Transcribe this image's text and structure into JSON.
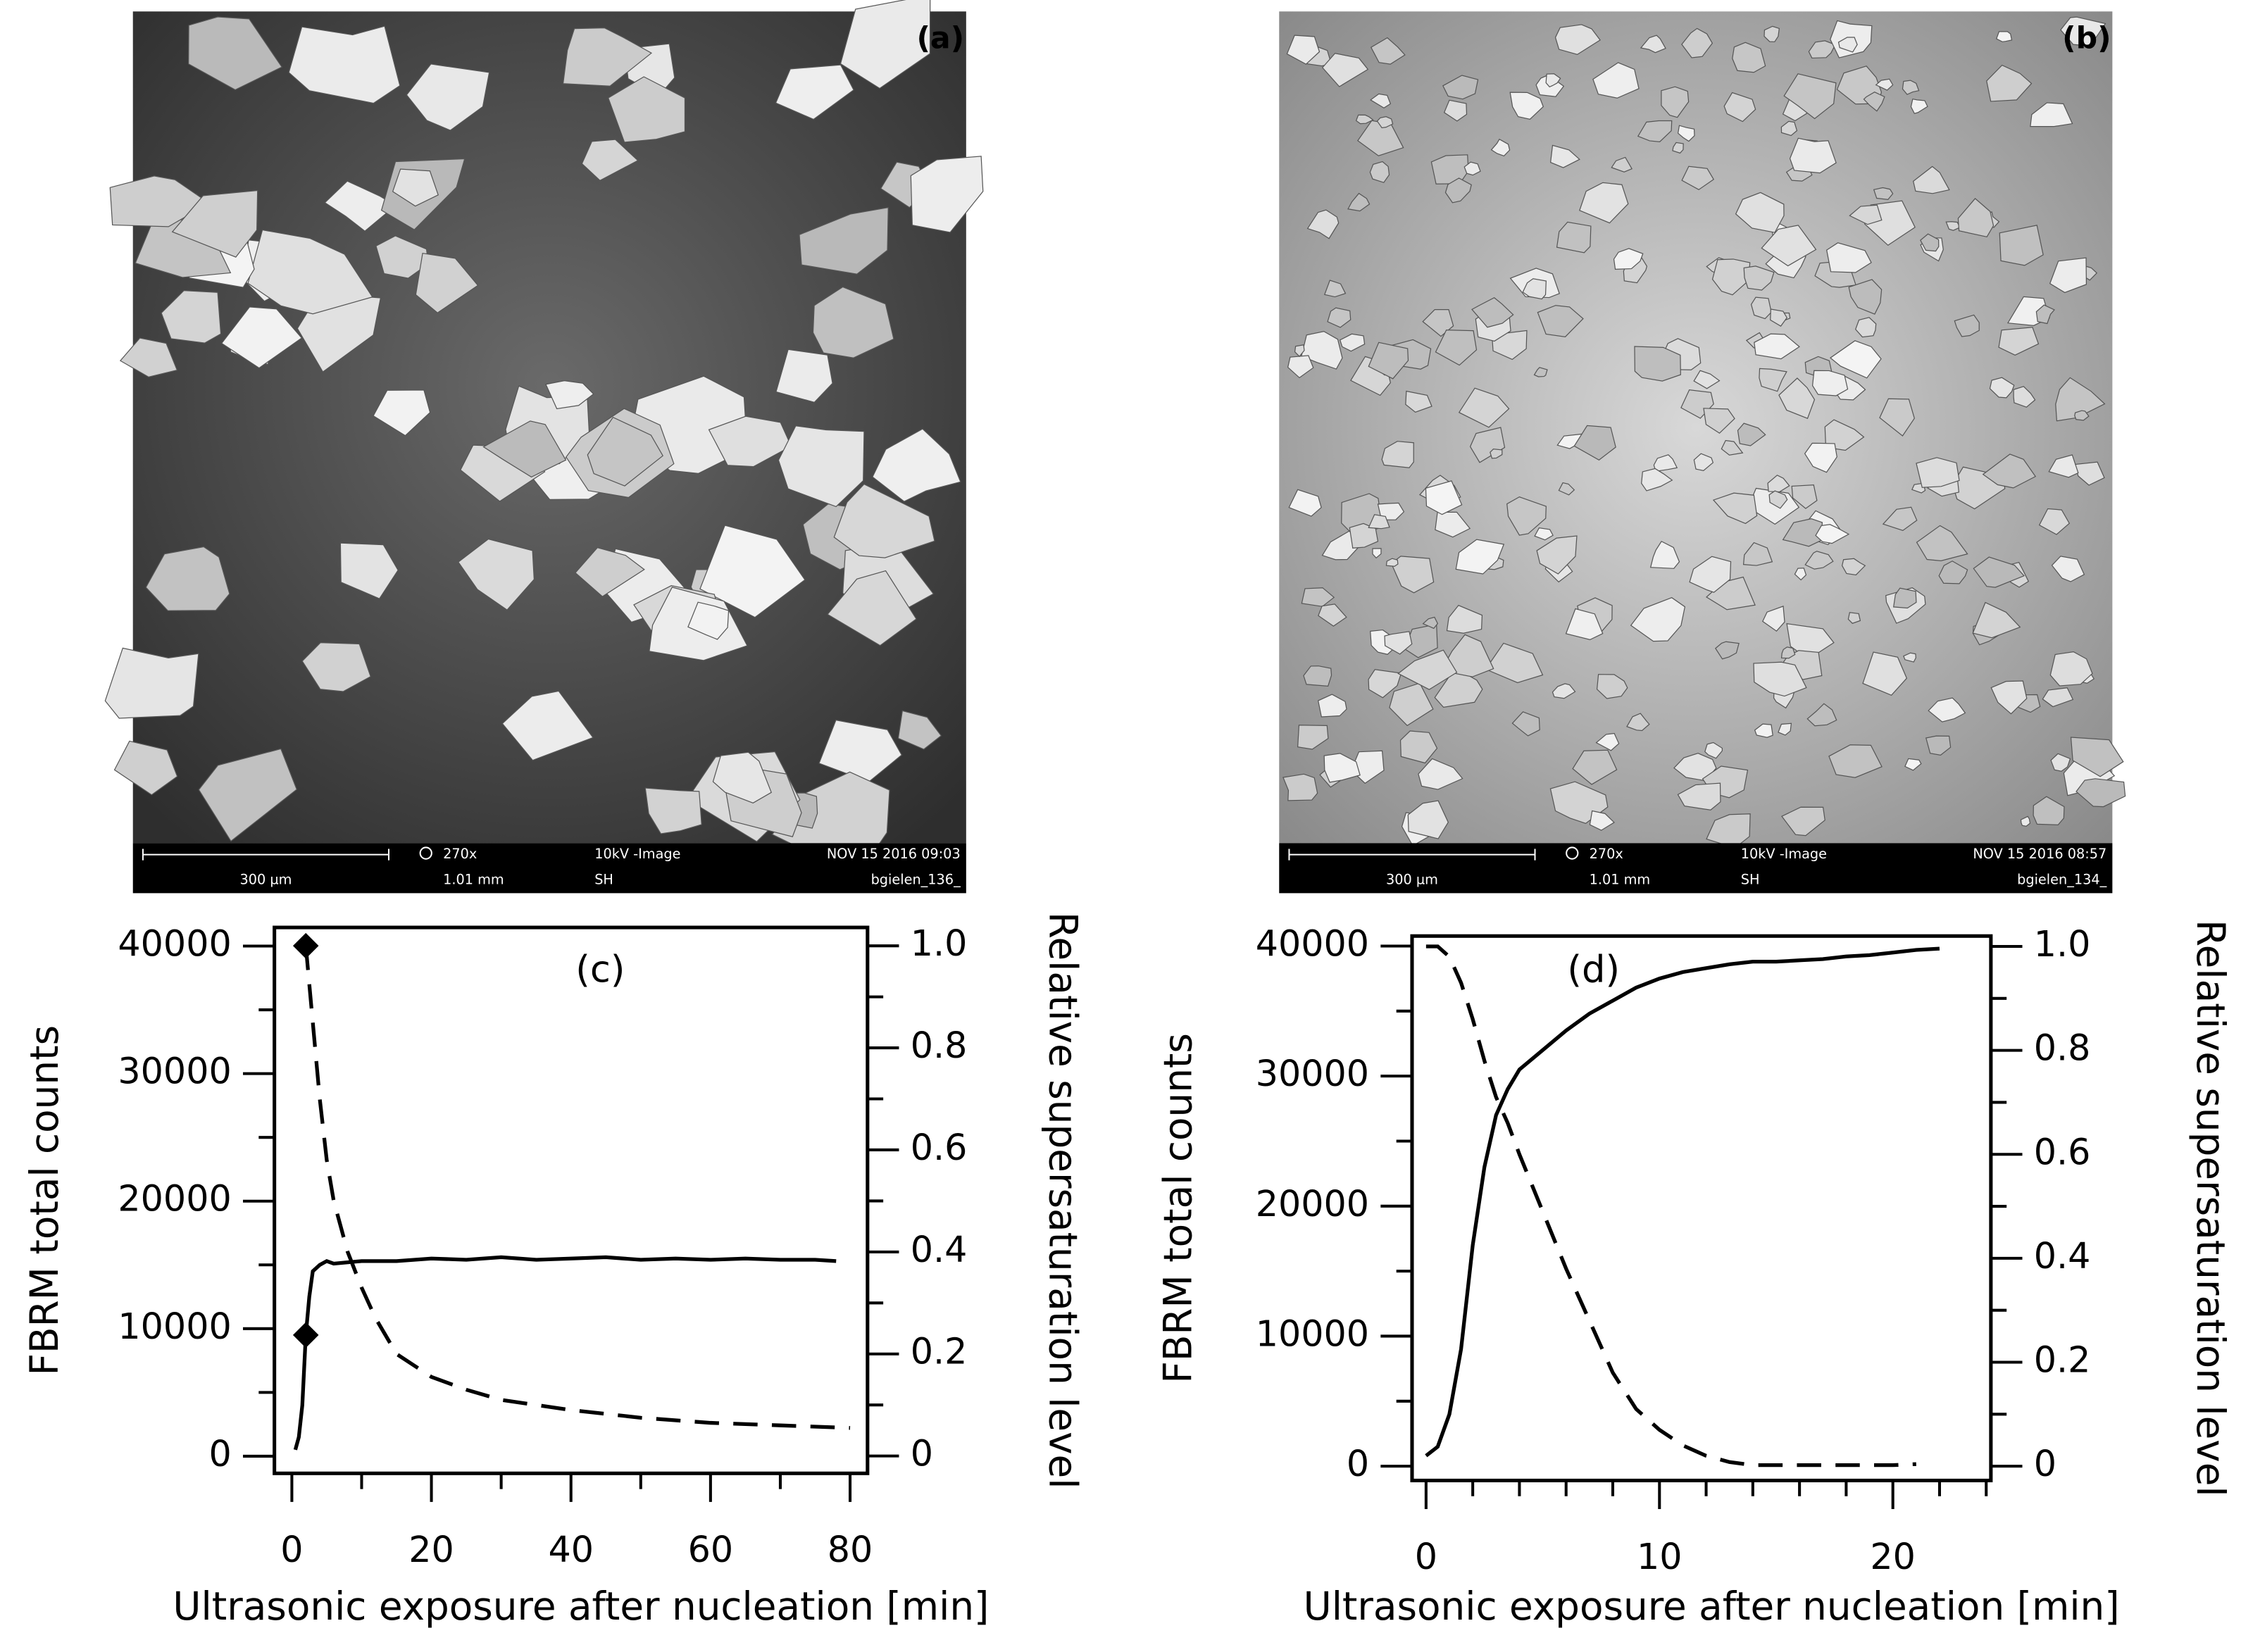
{
  "images": [
    {
      "label": "(a)",
      "scale_bar": "300 µm",
      "magnification": "270x",
      "field": "1.01 mm",
      "mode": "10kV -Image",
      "operator": "SH",
      "date": "NOV 15 2016 09:03",
      "file": "bgielen_136_",
      "tone": "dark"
    },
    {
      "label": "(b)",
      "scale_bar": "300 µm",
      "magnification": "270x",
      "field": "1.01 mm",
      "mode": "10kV -Image",
      "operator": "SH",
      "date": "NOV 15 2016 08:57",
      "file": "bgielen_134_",
      "tone": "light"
    }
  ],
  "chart_data": [
    {
      "type": "line",
      "annotation": "(c)",
      "x_label": "Ultrasonic exposure after nucleation [min]",
      "y_label": "FBRM total counts",
      "y2_label": "Relative supersaturation level",
      "xlim": [
        -2.5,
        82.5
      ],
      "xticks": [
        0,
        20,
        40,
        60,
        80
      ],
      "xminor": [
        10,
        30,
        50,
        70
      ],
      "ylim": [
        -1345,
        41460
      ],
      "yticks": [
        0,
        10000,
        20000,
        30000,
        40000
      ],
      "yminor": [
        5000,
        15000,
        25000,
        35000
      ],
      "y2lim": [
        -0.034,
        1.036
      ],
      "y2ticks": [
        0.0,
        {
          "value": 0.2,
          "label": "0.2"
        },
        {
          "value": 0.4,
          "label": "0.4"
        },
        {
          "value": 0.6,
          "label": "0.6"
        },
        {
          "value": 0.8,
          "label": "0.8"
        },
        {
          "value": 1.0,
          "label": "1.0"
        }
      ],
      "y2minor": [
        0.1,
        0.3,
        0.5,
        0.7,
        0.9
      ],
      "series": [
        {
          "color": "#000000",
          "style": "solid",
          "axis": "y",
          "x": [
            0.5,
            1,
            1.5,
            2,
            2.5,
            3,
            4,
            5,
            6,
            8,
            10,
            15,
            20,
            25,
            30,
            35,
            40,
            45,
            50,
            55,
            60,
            65,
            70,
            75,
            78
          ],
          "values": [
            500,
            1500,
            4000,
            9500,
            12500,
            14500,
            15000,
            15300,
            15100,
            15200,
            15300,
            15300,
            15500,
            15400,
            15600,
            15400,
            15500,
            15600,
            15400,
            15500,
            15400,
            15500,
            15400,
            15400,
            15300
          ]
        },
        {
          "color": "#000000",
          "style": "dashed",
          "axis": "y2",
          "x": [
            2,
            3,
            4,
            5,
            6,
            8,
            10,
            12,
            15,
            20,
            25,
            30,
            40,
            50,
            60,
            70,
            80
          ],
          "values": [
            1.0,
            0.85,
            0.7,
            0.58,
            0.5,
            0.4,
            0.33,
            0.27,
            0.2,
            0.155,
            0.13,
            0.11,
            0.09,
            0.075,
            0.065,
            0.06,
            0.055
          ]
        },
        {
          "color": "#000000",
          "style": "marker",
          "axis": "y",
          "x": [
            2
          ],
          "values": [
            9500
          ]
        },
        {
          "color": "#000000",
          "style": "marker",
          "axis": "y2",
          "x": [
            2
          ],
          "values": [
            1.0
          ]
        }
      ]
    },
    {
      "type": "line",
      "annotation": "(d)",
      "x_label": "Ultrasonic exposure after nucleation [min]",
      "y_label": "FBRM total counts",
      "y2_label": "Relative supersaturation level",
      "xlim": [
        -0.6,
        24.2
      ],
      "xticks": [
        0,
        10,
        20
      ],
      "xminor": [
        2,
        4,
        6,
        8,
        12,
        14,
        16,
        18,
        22,
        24
      ],
      "ylim": [
        -1100,
        40770
      ],
      "yticks": [
        0,
        10000,
        20000,
        30000,
        40000
      ],
      "yminor": [
        5000,
        15000,
        25000,
        35000
      ],
      "y2lim": [
        -0.0275,
        1.02
      ],
      "y2ticks": [
        0.0,
        {
          "value": 0.2,
          "label": "0.2"
        },
        {
          "value": 0.4,
          "label": "0.4"
        },
        {
          "value": 0.6,
          "label": "0.6"
        },
        {
          "value": 0.8,
          "label": "0.8"
        },
        {
          "value": 1.0,
          "label": "1.0"
        }
      ],
      "y2minor": [
        0.1,
        0.3,
        0.5,
        0.7,
        0.9
      ],
      "series": [
        {
          "color": "#000000",
          "style": "solid",
          "axis": "y",
          "x": [
            0,
            0.5,
            1,
            1.5,
            2,
            2.5,
            3,
            3.5,
            4,
            5,
            6,
            7,
            8,
            9,
            10,
            11,
            12,
            13,
            14,
            15,
            16,
            17,
            18,
            19,
            20,
            21,
            22
          ],
          "values": [
            800,
            1500,
            4000,
            9000,
            17000,
            23000,
            27000,
            29000,
            30500,
            32000,
            33500,
            34800,
            35800,
            36800,
            37500,
            38000,
            38300,
            38600,
            38800,
            38800,
            38900,
            39000,
            39200,
            39300,
            39500,
            39700,
            39800
          ]
        },
        {
          "color": "#000000",
          "style": "dashed",
          "axis": "y2",
          "x": [
            0,
            0.5,
            1,
            1.5,
            2,
            2.5,
            3,
            3.5,
            4,
            5,
            6,
            7,
            8,
            9,
            10,
            11,
            12,
            13,
            14,
            16,
            18,
            20,
            21
          ],
          "values": [
            1.0,
            1.0,
            0.98,
            0.93,
            0.86,
            0.78,
            0.71,
            0.66,
            0.6,
            0.49,
            0.38,
            0.28,
            0.18,
            0.11,
            0.07,
            0.04,
            0.02,
            0.008,
            0.002,
            0.002,
            0.002,
            0.002,
            0.004
          ]
        }
      ]
    }
  ]
}
